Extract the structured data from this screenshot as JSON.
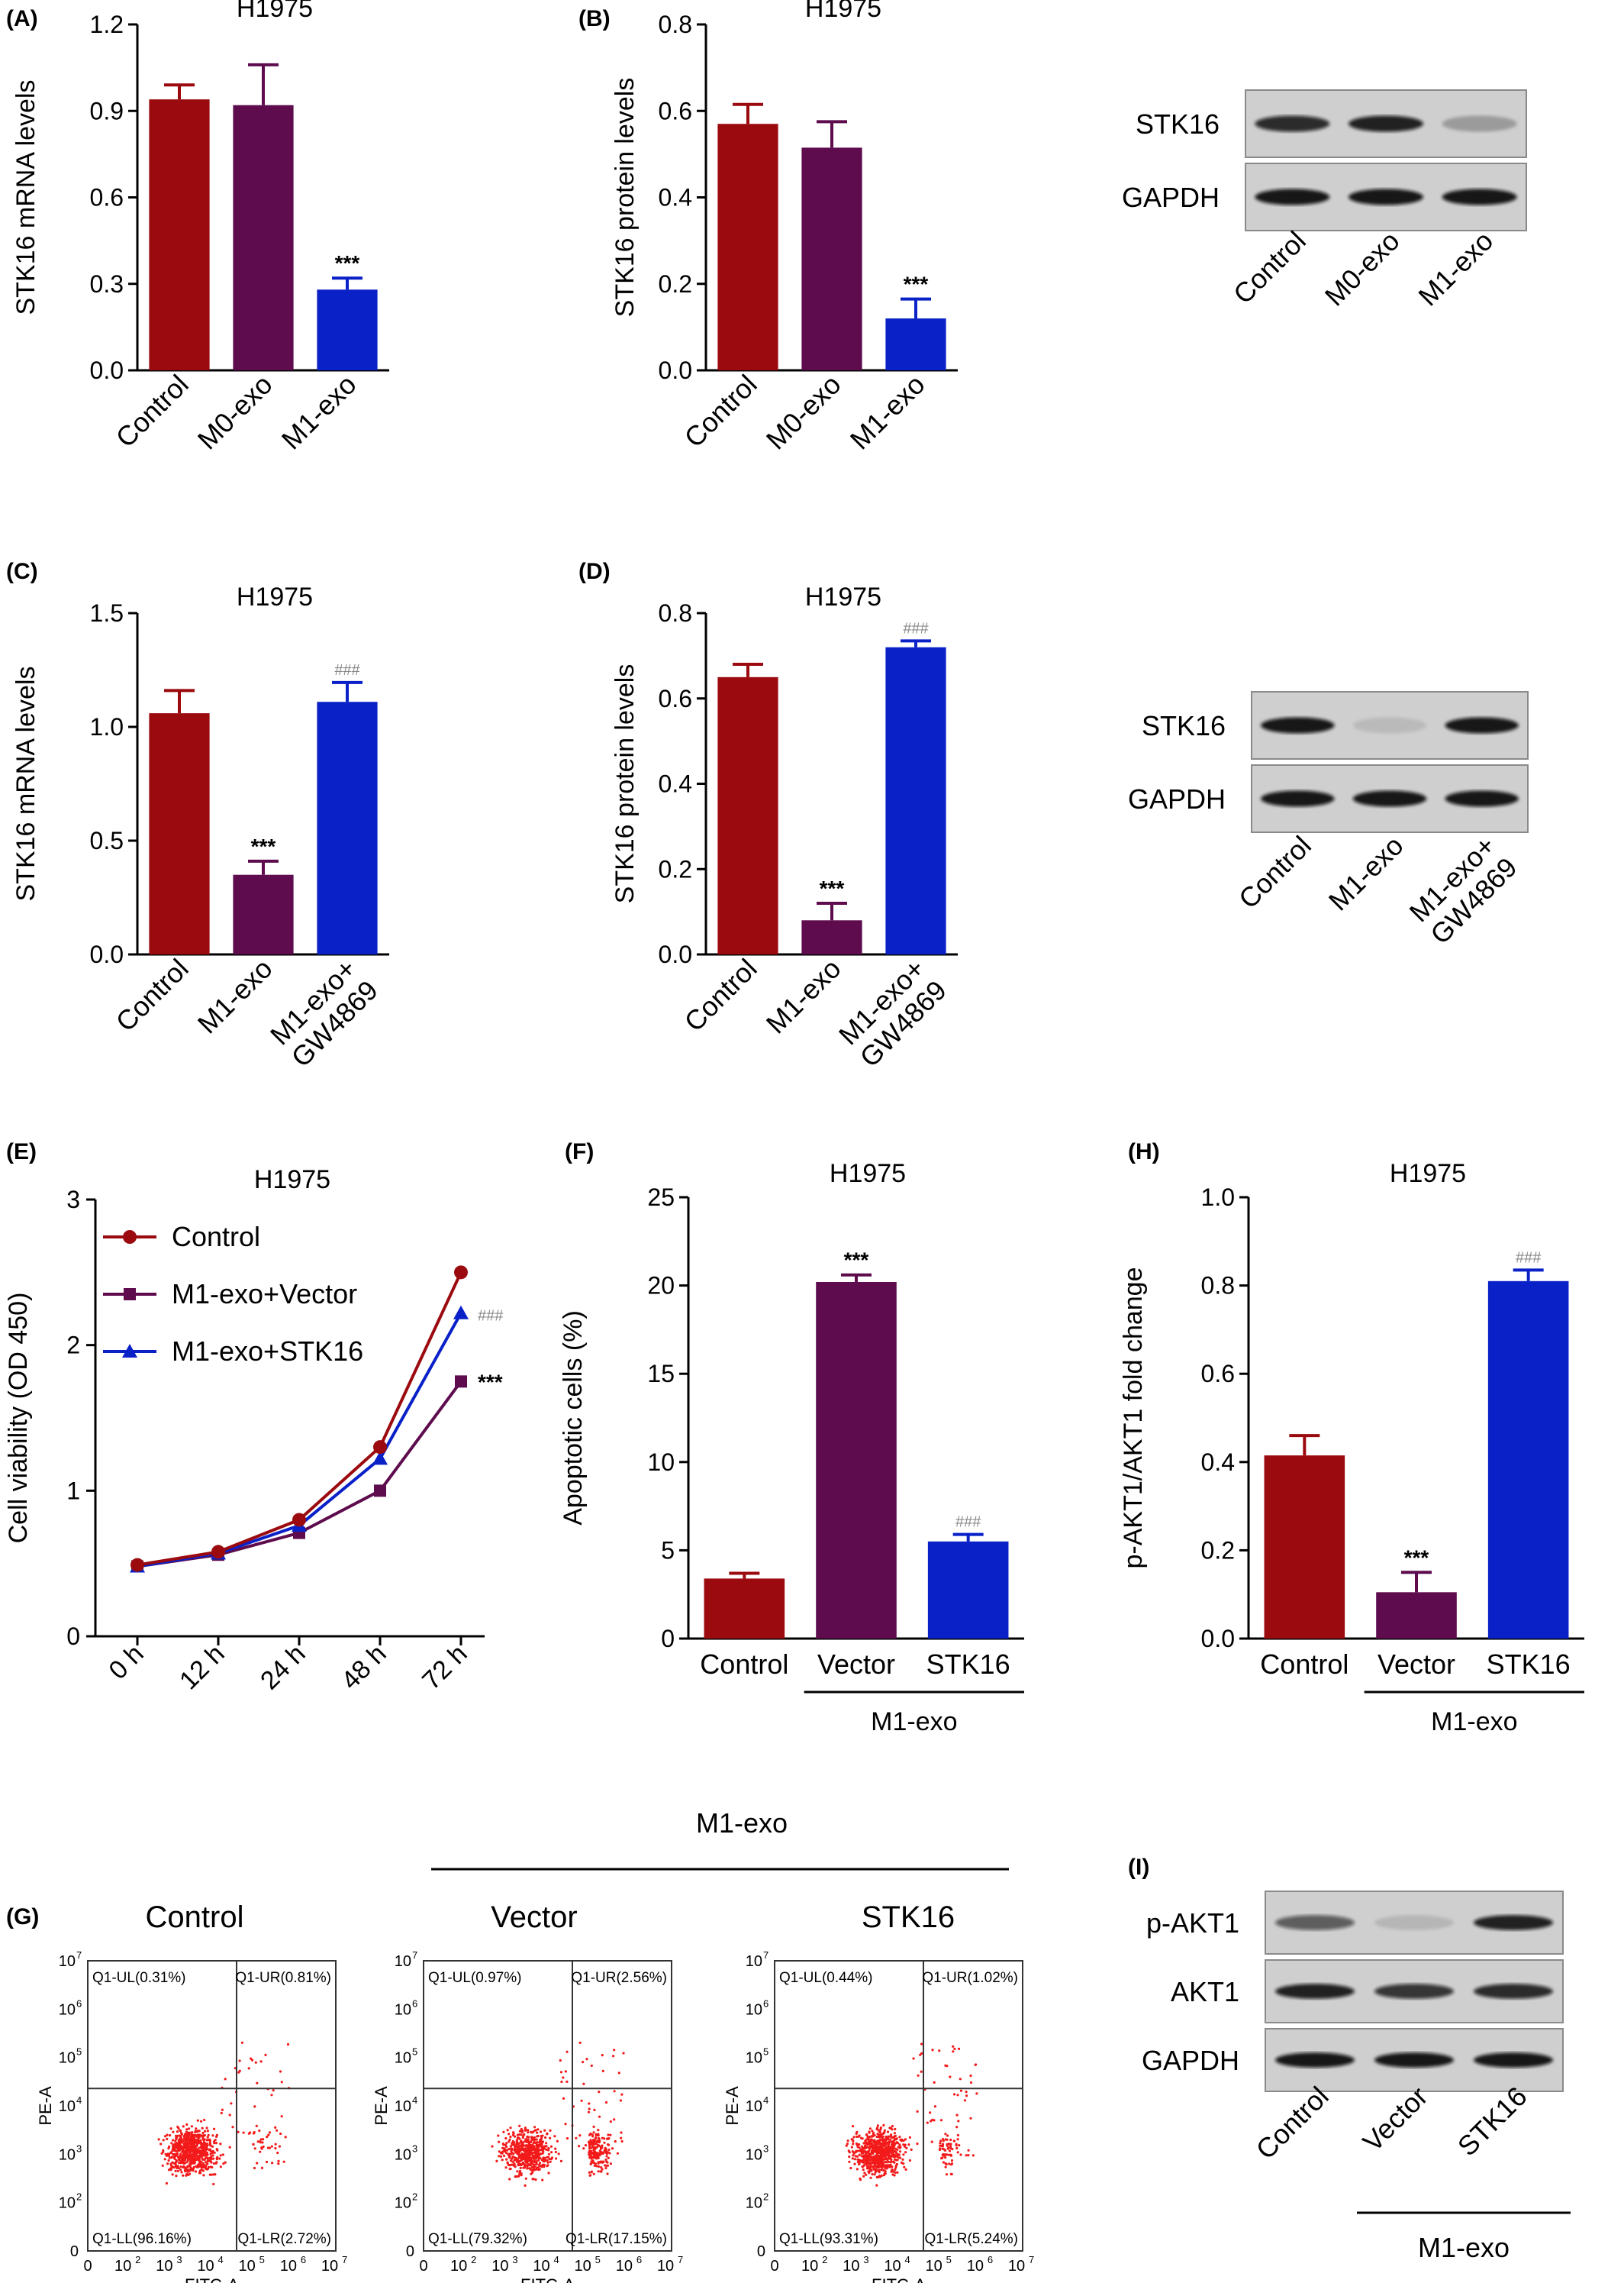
{
  "colors": {
    "red": "#9B0A0E",
    "purple": "#5E0C4E",
    "blue": "#0A21C8",
    "axis": "#000000",
    "dot": "#F21A1A"
  },
  "chart_data": [
    {
      "panel": "(A)",
      "type": "bar",
      "title": "H1975",
      "ylabel": "STK16 mRNA levels",
      "categories": [
        "Control",
        "M0-exo",
        "M1-exo"
      ],
      "values": [
        0.94,
        0.92,
        0.28
      ],
      "errors": [
        0.05,
        0.14,
        0.04
      ],
      "marks": [
        "",
        "",
        "***"
      ],
      "ylim": [
        0,
        1.2
      ],
      "yticks": [
        "0.0",
        "0.3",
        "0.6",
        "0.9",
        "1.2"
      ],
      "yticks_v": [
        0,
        0.3,
        0.6,
        0.9,
        1.2
      ]
    },
    {
      "panel": "(B)",
      "type": "bar",
      "title": "H1975",
      "ylabel": "STK16 protein levels",
      "categories": [
        "Control",
        "M0-exo",
        "M1-exo"
      ],
      "values": [
        0.57,
        0.515,
        0.12
      ],
      "errors": [
        0.045,
        0.06,
        0.045
      ],
      "marks": [
        "",
        "",
        "***"
      ],
      "ylim": [
        0,
        0.8
      ],
      "yticks": [
        "0.0",
        "0.2",
        "0.4",
        "0.6",
        "0.8"
      ],
      "yticks_v": [
        0,
        0.2,
        0.4,
        0.6,
        0.8
      ]
    },
    {
      "panel": "(C)",
      "type": "bar",
      "title": "H1975",
      "ylabel": "STK16 mRNA levels",
      "categories": [
        "Control",
        "M1-exo",
        "M1-exo+|GW4869"
      ],
      "values": [
        1.06,
        0.35,
        1.11
      ],
      "errors": [
        0.1,
        0.06,
        0.085
      ],
      "marks": [
        "",
        "***",
        "###"
      ],
      "ylim": [
        0,
        1.5
      ],
      "yticks": [
        "0.0",
        "0.5",
        "1.0",
        "1.5"
      ],
      "yticks_v": [
        0,
        0.5,
        1.0,
        1.5
      ]
    },
    {
      "panel": "(D)",
      "type": "bar",
      "title": "H1975",
      "ylabel": "STK16 protein levels",
      "categories": [
        "Control",
        "M1-exo",
        "M1-exo+|GW4869"
      ],
      "values": [
        0.65,
        0.08,
        0.72
      ],
      "errors": [
        0.03,
        0.04,
        0.015
      ],
      "marks": [
        "",
        "***",
        "###"
      ],
      "ylim": [
        0,
        0.8
      ],
      "yticks": [
        "0.0",
        "0.2",
        "0.4",
        "0.6",
        "0.8"
      ],
      "yticks_v": [
        0,
        0.2,
        0.4,
        0.6,
        0.8
      ]
    },
    {
      "panel": "(E)",
      "type": "line",
      "title": "H1975",
      "ylabel": "Cell viability (OD 450)",
      "x": [
        "0 h",
        "12 h",
        "24 h",
        "48 h",
        "72 h"
      ],
      "ylim": [
        0,
        3
      ],
      "yticks": [
        "0",
        "1",
        "2",
        "3"
      ],
      "yticks_v": [
        0,
        1,
        2,
        3
      ],
      "legend_position": "top-left",
      "series": [
        {
          "name": "Control",
          "values": [
            0.49,
            0.58,
            0.8,
            1.3,
            2.5
          ],
          "marker": "circle",
          "mark": ""
        },
        {
          "name": "M1-exo+Vector",
          "values": [
            0.48,
            0.56,
            0.71,
            1.0,
            1.75
          ],
          "marker": "square",
          "mark": "***"
        },
        {
          "name": "M1-exo+STK16",
          "values": [
            0.48,
            0.57,
            0.76,
            1.22,
            2.22
          ],
          "marker": "triangle",
          "mark": "###"
        }
      ]
    },
    {
      "panel": "(F)",
      "type": "bar",
      "title": "H1975",
      "ylabel": "Apoptotic cells (%)",
      "categories": [
        "Control",
        "Vector",
        "STK16"
      ],
      "group_label": "M1-exo",
      "values": [
        3.4,
        20.2,
        5.5
      ],
      "errors": [
        0.3,
        0.4,
        0.4
      ],
      "marks": [
        "",
        "***",
        "###"
      ],
      "ylim": [
        0,
        25
      ],
      "yticks": [
        "0",
        "5",
        "10",
        "15",
        "20",
        "25"
      ],
      "yticks_v": [
        0,
        5,
        10,
        15,
        20,
        25
      ]
    },
    {
      "panel": "(H)",
      "type": "bar",
      "title": "H1975",
      "ylabel": "p-AKT1/AKT1 fold change",
      "categories": [
        "Control",
        "Vector",
        "STK16"
      ],
      "group_label": "M1-exo",
      "values": [
        0.415,
        0.105,
        0.81
      ],
      "errors": [
        0.045,
        0.045,
        0.025
      ],
      "marks": [
        "",
        "***",
        "###"
      ],
      "ylim": [
        0,
        1.0
      ],
      "yticks": [
        "0.0",
        "0.2",
        "0.4",
        "0.6",
        "0.8",
        "1.0"
      ],
      "yticks_v": [
        0,
        0.2,
        0.4,
        0.6,
        0.8,
        1.0
      ]
    },
    {
      "panel": "(G)",
      "type": "scatter",
      "group_label": "M1-exo",
      "xlabel": "FITC-A",
      "ylabel": "PE-A",
      "tick_exponents": [
        "0",
        "10^2",
        "10^3",
        "10^4",
        "10^5",
        "10^6",
        "10^7"
      ],
      "plots": [
        {
          "title": "Control",
          "ul": "Q1-UL(0.31%)",
          "ur": "Q1-UR(0.81%)",
          "ll": "Q1-LL(96.16%)",
          "lr": "Q1-LR(2.72%)",
          "quadrants_pct": [
            0.31,
            0.81,
            96.16,
            2.72
          ]
        },
        {
          "title": "Vector",
          "ul": "Q1-UL(0.97%)",
          "ur": "Q1-UR(2.56%)",
          "ll": "Q1-LL(79.32%)",
          "lr": "Q1-LR(17.15%)",
          "quadrants_pct": [
            0.97,
            2.56,
            79.32,
            17.15
          ]
        },
        {
          "title": "STK16",
          "ul": "Q1-UL(0.44%)",
          "ur": "Q1-UR(1.02%)",
          "ll": "Q1-LL(93.31%)",
          "lr": "Q1-LR(5.24%)",
          "quadrants_pct": [
            0.44,
            1.02,
            93.31,
            5.24
          ]
        }
      ]
    }
  ],
  "panels": {
    "a": "(A)",
    "b": "(B)",
    "c": "(C)",
    "d": "(D)",
    "e": "(E)",
    "f": "(F)",
    "g": "(G)",
    "h": "(H)",
    "i": "(I)"
  },
  "blots": {
    "b": {
      "rows": [
        "STK16",
        "GAPDH"
      ],
      "lanes": [
        "Control",
        "M0-exo",
        "M1-exo"
      ],
      "intensity": [
        [
          0.85,
          0.9,
          0.25
        ],
        [
          0.95,
          0.95,
          0.95
        ]
      ]
    },
    "d": {
      "rows": [
        "STK16",
        "GAPDH"
      ],
      "lanes": [
        "Control",
        "M1-exo",
        "M1-exo+|GW4869"
      ],
      "intensity": [
        [
          0.95,
          0.1,
          0.95
        ],
        [
          0.95,
          0.95,
          0.95
        ]
      ]
    },
    "i": {
      "rows": [
        "p-AKT1",
        "AKT1",
        "GAPDH"
      ],
      "lanes": [
        "Control",
        "Vector",
        "STK16"
      ],
      "group_label": "M1-exo",
      "intensity": [
        [
          0.6,
          0.12,
          0.9
        ],
        [
          0.9,
          0.8,
          0.85
        ],
        [
          0.95,
          0.95,
          0.95
        ]
      ]
    }
  }
}
